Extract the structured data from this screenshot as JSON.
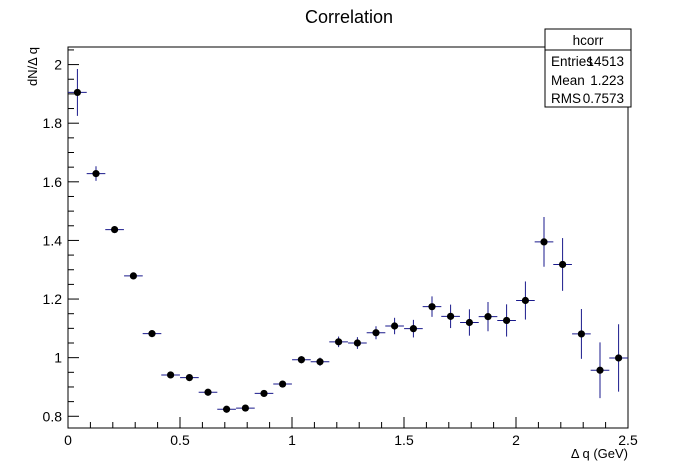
{
  "chart_data": {
    "type": "scatter",
    "title": "Correlation",
    "xlabel": "Δ q (GeV)",
    "ylabel": "dN/Δ q",
    "xlim": [
      0,
      2.5
    ],
    "ylim": [
      0.76,
      2.06
    ],
    "x_ticks": [
      "0",
      "0.5",
      "1",
      "1.5",
      "2",
      "2.5"
    ],
    "y_ticks": [
      "0.8",
      "1",
      "1.2",
      "1.4",
      "1.6",
      "1.8",
      "2"
    ],
    "grid": false,
    "legend": "none",
    "bin_width": 0.0833,
    "series": [
      {
        "marker_color": "#000000",
        "error_color": "#1a1a8c",
        "points": [
          {
            "x": 0.042,
            "y": 1.905,
            "err": 0.08
          },
          {
            "x": 0.125,
            "y": 1.628,
            "err": 0.025
          },
          {
            "x": 0.208,
            "y": 1.437,
            "err": 0.012
          },
          {
            "x": 0.292,
            "y": 1.279,
            "err": 0.006
          },
          {
            "x": 0.375,
            "y": 1.082,
            "err": 0.006
          },
          {
            "x": 0.458,
            "y": 0.941,
            "err": 0.006
          },
          {
            "x": 0.542,
            "y": 0.932,
            "err": 0.006
          },
          {
            "x": 0.625,
            "y": 0.882,
            "err": 0.006
          },
          {
            "x": 0.708,
            "y": 0.824,
            "err": 0.006
          },
          {
            "x": 0.792,
            "y": 0.828,
            "err": 0.006
          },
          {
            "x": 0.875,
            "y": 0.878,
            "err": 0.006
          },
          {
            "x": 0.958,
            "y": 0.91,
            "err": 0.008
          },
          {
            "x": 1.042,
            "y": 0.993,
            "err": 0.012
          },
          {
            "x": 1.125,
            "y": 0.986,
            "err": 0.014
          },
          {
            "x": 1.208,
            "y": 1.054,
            "err": 0.018
          },
          {
            "x": 1.292,
            "y": 1.05,
            "err": 0.02
          },
          {
            "x": 1.375,
            "y": 1.085,
            "err": 0.022
          },
          {
            "x": 1.458,
            "y": 1.108,
            "err": 0.028
          },
          {
            "x": 1.542,
            "y": 1.099,
            "err": 0.03
          },
          {
            "x": 1.625,
            "y": 1.174,
            "err": 0.035
          },
          {
            "x": 1.708,
            "y": 1.141,
            "err": 0.04
          },
          {
            "x": 1.792,
            "y": 1.12,
            "err": 0.045
          },
          {
            "x": 1.875,
            "y": 1.14,
            "err": 0.05
          },
          {
            "x": 1.958,
            "y": 1.127,
            "err": 0.055
          },
          {
            "x": 2.042,
            "y": 1.195,
            "err": 0.065
          },
          {
            "x": 2.125,
            "y": 1.395,
            "err": 0.085
          },
          {
            "x": 2.208,
            "y": 1.318,
            "err": 0.09
          },
          {
            "x": 2.292,
            "y": 1.081,
            "err": 0.085
          },
          {
            "x": 2.375,
            "y": 0.957,
            "err": 0.095
          },
          {
            "x": 2.458,
            "y": 0.999,
            "err": 0.115
          }
        ]
      }
    ]
  },
  "stats_box": {
    "title": "hcorr",
    "rows": [
      {
        "label": "Entries",
        "value": "14513"
      },
      {
        "label": "Mean",
        "value": "1.223"
      },
      {
        "label": "RMS",
        "value": "0.7573"
      }
    ]
  }
}
